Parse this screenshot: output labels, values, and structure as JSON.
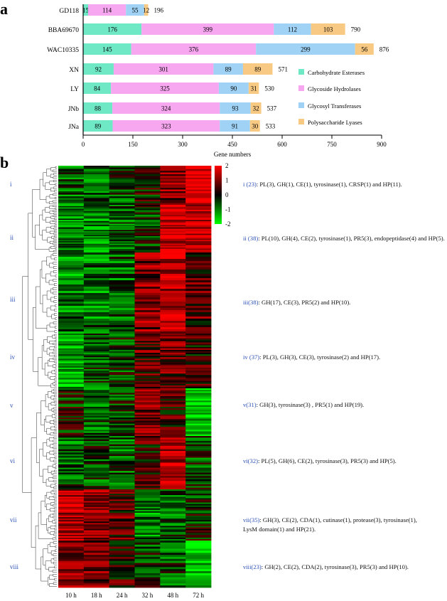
{
  "panel_a": {
    "letter": "a",
    "chart_data": {
      "type": "bar",
      "orientation": "horizontal",
      "stacked": true,
      "categories": [
        "GD118",
        "BBA69670",
        "WAC10335",
        "XN",
        "LY",
        "JNb",
        "JNa"
      ],
      "series": [
        {
          "name": "Carbohydrate Esterases",
          "color": "#6fe8c6",
          "values": [
            15,
            176,
            145,
            92,
            84,
            88,
            89
          ]
        },
        {
          "name": "Glycoside Hydrolases",
          "color": "#f7a7f0",
          "values": [
            114,
            399,
            376,
            301,
            325,
            324,
            323
          ]
        },
        {
          "name": "Glycosyl Transferases",
          "color": "#9fd2f5",
          "values": [
            55,
            112,
            299,
            89,
            90,
            93,
            91
          ]
        },
        {
          "name": "Polysaccharide Lyases",
          "color": "#f8c982",
          "values": [
            12,
            103,
            56,
            89,
            31,
            32,
            30
          ]
        }
      ],
      "totals": [
        196,
        790,
        876,
        571,
        530,
        537,
        533
      ],
      "xlabel": "Gene numbers",
      "xlim": [
        0,
        900
      ],
      "xticks": [
        0,
        150,
        300,
        450,
        600,
        750,
        900
      ],
      "legend_position": "right"
    }
  },
  "panel_b": {
    "letter": "b",
    "chart_data": {
      "type": "heatmap",
      "columns": [
        "10 h",
        "18 h",
        "24 h",
        "32 h",
        "48 h",
        "72 h"
      ],
      "colorbar": {
        "min": -2,
        "max": 2,
        "ticks": [
          "2",
          "1",
          "0",
          "-1",
          "-2"
        ],
        "low_color": "#00ff00",
        "mid_color": "#000000",
        "high_color": "#ff0000"
      },
      "clusters": [
        {
          "label": "i",
          "size": 23,
          "profile": [
            -0.6,
            -0.7,
            -0.4,
            0.1,
            0.9,
            1.8
          ],
          "note_prefix": "i (23)",
          "note_text": ": PL(3), GH(1), CE(1), tyrosinase(1), CRSP(1) and HP(11)."
        },
        {
          "label": "ii",
          "size": 38,
          "profile": [
            -0.9,
            -0.9,
            -0.7,
            -0.3,
            1.4,
            1.4
          ],
          "note_prefix": "ii (38)",
          "note_text": ": PL(10), GH(4), CE(2), tyrosinase(1), PR5(3), endopeptidase(4) and HP(5)."
        },
        {
          "label": "iii",
          "size": 38,
          "profile": [
            -0.9,
            -0.8,
            -0.6,
            0.9,
            1.3,
            0.6
          ],
          "note_prefix": "iii(38)",
          "note_text": ": GH(17), CE(3), PR5(2) and HP(10)."
        },
        {
          "label": "iv",
          "size": 37,
          "profile": [
            -1.2,
            -0.5,
            -0.3,
            0.6,
            0.7,
            0.3
          ],
          "note_prefix": "iv (37)",
          "note_text": ": PL(3), GH(3), CE(3), tyrosinase(2) and HP(17)."
        },
        {
          "label": "v",
          "size": 31,
          "profile": [
            -0.1,
            -0.6,
            -0.2,
            0.9,
            0.4,
            -1.4
          ],
          "note_prefix": "v(31)",
          "note_text": ": GH(3), tyrosinase(3) , PR5(1) and HP(19)."
        },
        {
          "label": "vi",
          "size": 32,
          "profile": [
            -0.6,
            -0.4,
            -0.6,
            0.3,
            1.3,
            -0.4
          ],
          "note_prefix": "vi(32)",
          "note_text": ": PL(5), GH(6), CE(2), tyrosinase(3), PR5(3) and HP(5)."
        },
        {
          "label": "vii",
          "size": 35,
          "profile": [
            1.3,
            0.9,
            0.5,
            -0.9,
            -0.6,
            -0.2
          ],
          "note_prefix": "vii(35)",
          "note_text": ": GH(3), CE(2), CDA(1), cutinase(1), protease(3), tyrosinase(1),",
          "note_text_2": "LysM domain(1) and HP(21)."
        },
        {
          "label": "viii",
          "size": 23,
          "profile": [
            0.8,
            0.9,
            0.4,
            -0.3,
            -0.5,
            -1.5
          ],
          "note_prefix": "viii(23)",
          "note_text": ": GH(2), CE(2), CDA(2), tyrosinase(3), PR5(3) and HP(10)."
        }
      ]
    }
  }
}
